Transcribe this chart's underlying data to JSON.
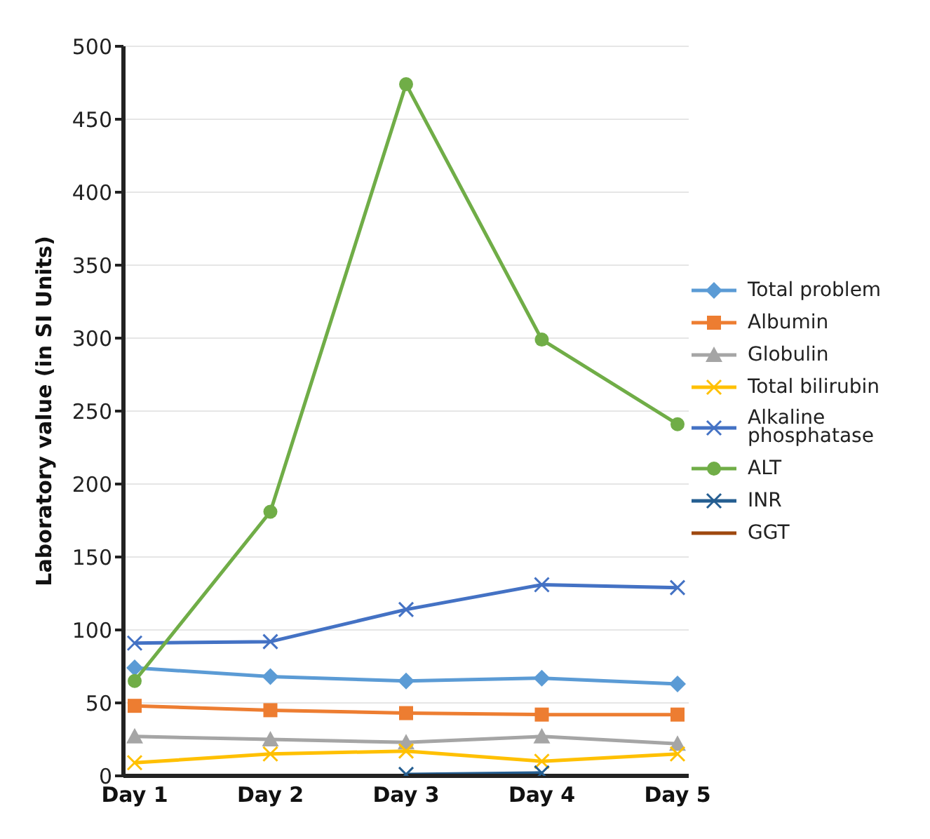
{
  "chart_data": {
    "type": "line",
    "ylabel": "Laboratory value (in SI Units)",
    "categories": [
      "Day 1",
      "Day 2",
      "Day 3",
      "Day 4",
      "Day 5"
    ],
    "ylim": [
      0,
      500
    ],
    "yticks": [
      0,
      50,
      100,
      150,
      200,
      250,
      300,
      350,
      400,
      450,
      500
    ],
    "grid": "y",
    "legend": "right",
    "series": [
      {
        "name": "Total problem",
        "color": "#5b9bd5",
        "marker": "diamond",
        "values": [
          74,
          68,
          65,
          67,
          63
        ]
      },
      {
        "name": "Albumin",
        "color": "#ed7d31",
        "marker": "square",
        "values": [
          48,
          45,
          43,
          42,
          42
        ]
      },
      {
        "name": "Globulin",
        "color": "#a5a5a5",
        "marker": "triangle",
        "values": [
          27,
          25,
          23,
          27,
          22
        ]
      },
      {
        "name": "Total bilirubin",
        "color": "#ffc000",
        "marker": "cross",
        "values": [
          9,
          15,
          17,
          10,
          15
        ]
      },
      {
        "name": "Alkaline phosphatase",
        "color": "#4472c4",
        "marker": "cross",
        "values": [
          91,
          92,
          114,
          131,
          129
        ]
      },
      {
        "name": "ALT",
        "color": "#70ad47",
        "marker": "circle",
        "values": [
          65,
          181,
          474,
          299,
          241
        ]
      },
      {
        "name": "INR",
        "color": "#255e91",
        "marker": "cross",
        "values": [
          null,
          null,
          1,
          2,
          null
        ]
      },
      {
        "name": "GGT",
        "color": "#9e480e",
        "marker": "none",
        "values": [
          null,
          null,
          null,
          null,
          null
        ]
      }
    ]
  }
}
